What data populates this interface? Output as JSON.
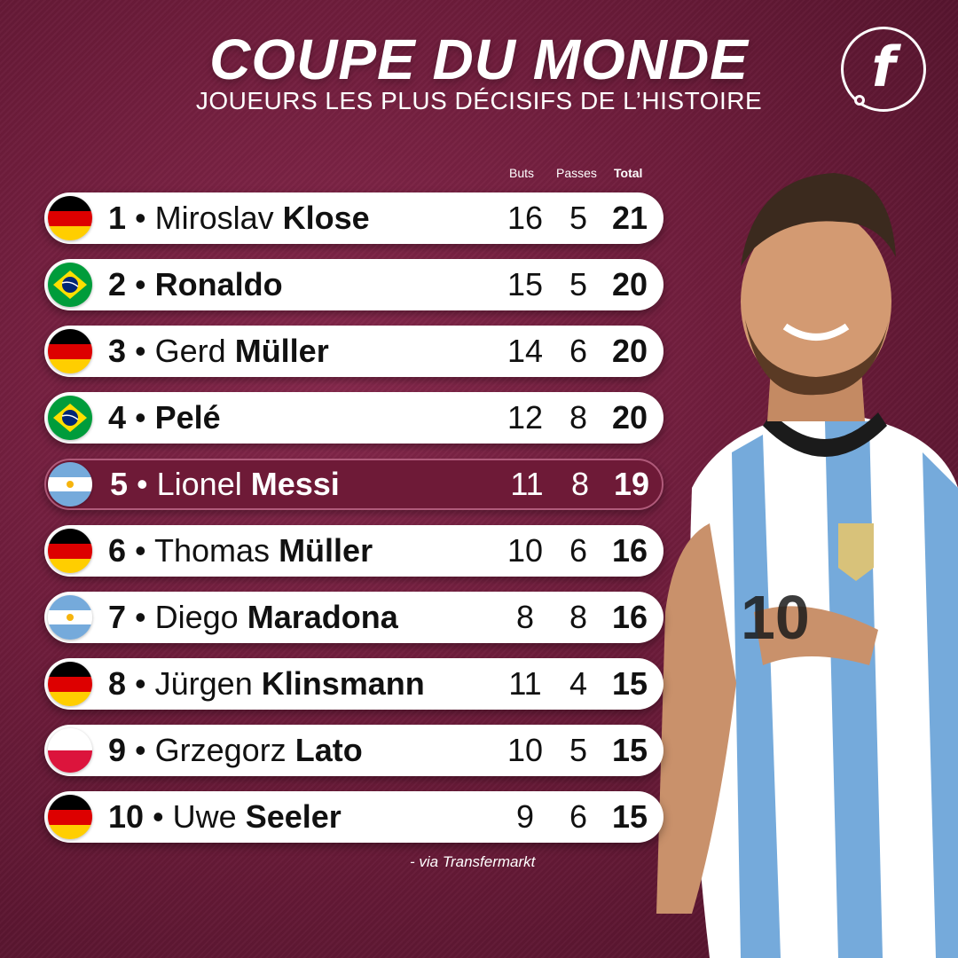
{
  "header": {
    "title": "COUPE DU MONDE",
    "subtitle": "JOUEURS LES PLUS DÉCISIFS DE L’HISTOIRE",
    "logo_letter": "f"
  },
  "columns": {
    "buts": "Buts",
    "passes": "Passes",
    "total": "Total"
  },
  "players": [
    {
      "rank": "1",
      "first": "Miroslav",
      "last": "Klose",
      "country": "germany",
      "buts": "16",
      "passes": "5",
      "total": "21"
    },
    {
      "rank": "2",
      "first": "",
      "last": "Ronaldo",
      "country": "brazil",
      "buts": "15",
      "passes": "5",
      "total": "20"
    },
    {
      "rank": "3",
      "first": "Gerd",
      "last": "Müller",
      "country": "germany",
      "buts": "14",
      "passes": "6",
      "total": "20"
    },
    {
      "rank": "4",
      "first": "",
      "last": "Pelé",
      "country": "brazil",
      "buts": "12",
      "passes": "8",
      "total": "20"
    },
    {
      "rank": "5",
      "first": "Lionel",
      "last": "Messi",
      "country": "argentina",
      "buts": "11",
      "passes": "8",
      "total": "19",
      "highlight": true
    },
    {
      "rank": "6",
      "first": "Thomas",
      "last": "Müller",
      "country": "germany",
      "buts": "10",
      "passes": "6",
      "total": "16"
    },
    {
      "rank": "7",
      "first": "Diego",
      "last": "Maradona",
      "country": "argentina",
      "buts": "8",
      "passes": "8",
      "total": "16"
    },
    {
      "rank": "8",
      "first": "Jürgen",
      "last": "Klinsmann",
      "country": "germany",
      "buts": "11",
      "passes": "4",
      "total": "15"
    },
    {
      "rank": "9",
      "first": "Grzegorz",
      "last": "Lato",
      "country": "poland",
      "buts": "10",
      "passes": "5",
      "total": "15"
    },
    {
      "rank": "10",
      "first": "Uwe",
      "last": "Seeler",
      "country": "germany",
      "buts": "9",
      "passes": "6",
      "total": "15"
    }
  ],
  "source": "- via Transfermarkt",
  "colors": {
    "background": "#6f1d3c",
    "highlight_row": "#6e1a37",
    "row": "#ffffff",
    "argentina_blue": "#75aadb"
  }
}
